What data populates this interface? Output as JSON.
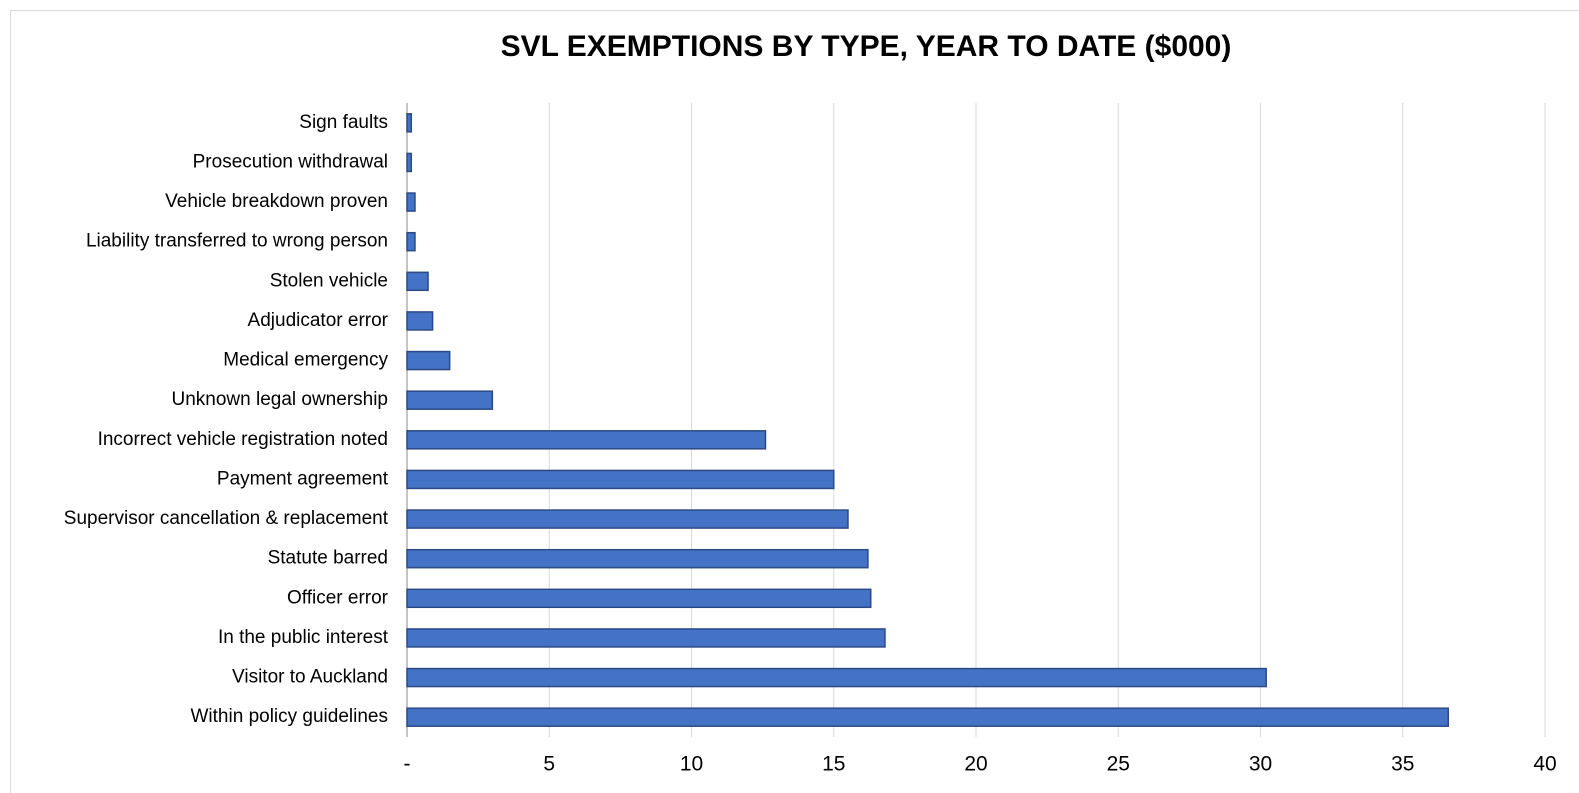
{
  "chart_data": {
    "type": "bar",
    "orientation": "horizontal",
    "title": "SVL EXEMPTIONS BY TYPE, YEAR TO DATE ($000)",
    "categories": [
      "Sign faults",
      "Prosecution withdrawal",
      "Vehicle breakdown proven",
      "Liability transferred to wrong person",
      "Stolen vehicle",
      "Adjudicator error",
      "Medical emergency",
      "Unknown legal ownership",
      "Incorrect vehicle registration noted",
      "Payment agreement",
      "Supervisor cancellation & replacement",
      "Statute barred",
      "Officer error",
      "In the public interest",
      "Visitor to Auckland",
      "Within policy guidelines"
    ],
    "values": [
      0.15,
      0.15,
      0.28,
      0.28,
      0.74,
      0.9,
      1.5,
      3.0,
      12.6,
      15.0,
      15.5,
      16.2,
      16.3,
      16.8,
      30.2,
      36.6
    ],
    "color": "#4472c4",
    "xlim": [
      0,
      40
    ],
    "xticks": [
      {
        "value": 0,
        "label": "-"
      },
      5,
      10,
      15,
      20,
      25,
      30,
      35,
      40
    ],
    "grid": true
  }
}
